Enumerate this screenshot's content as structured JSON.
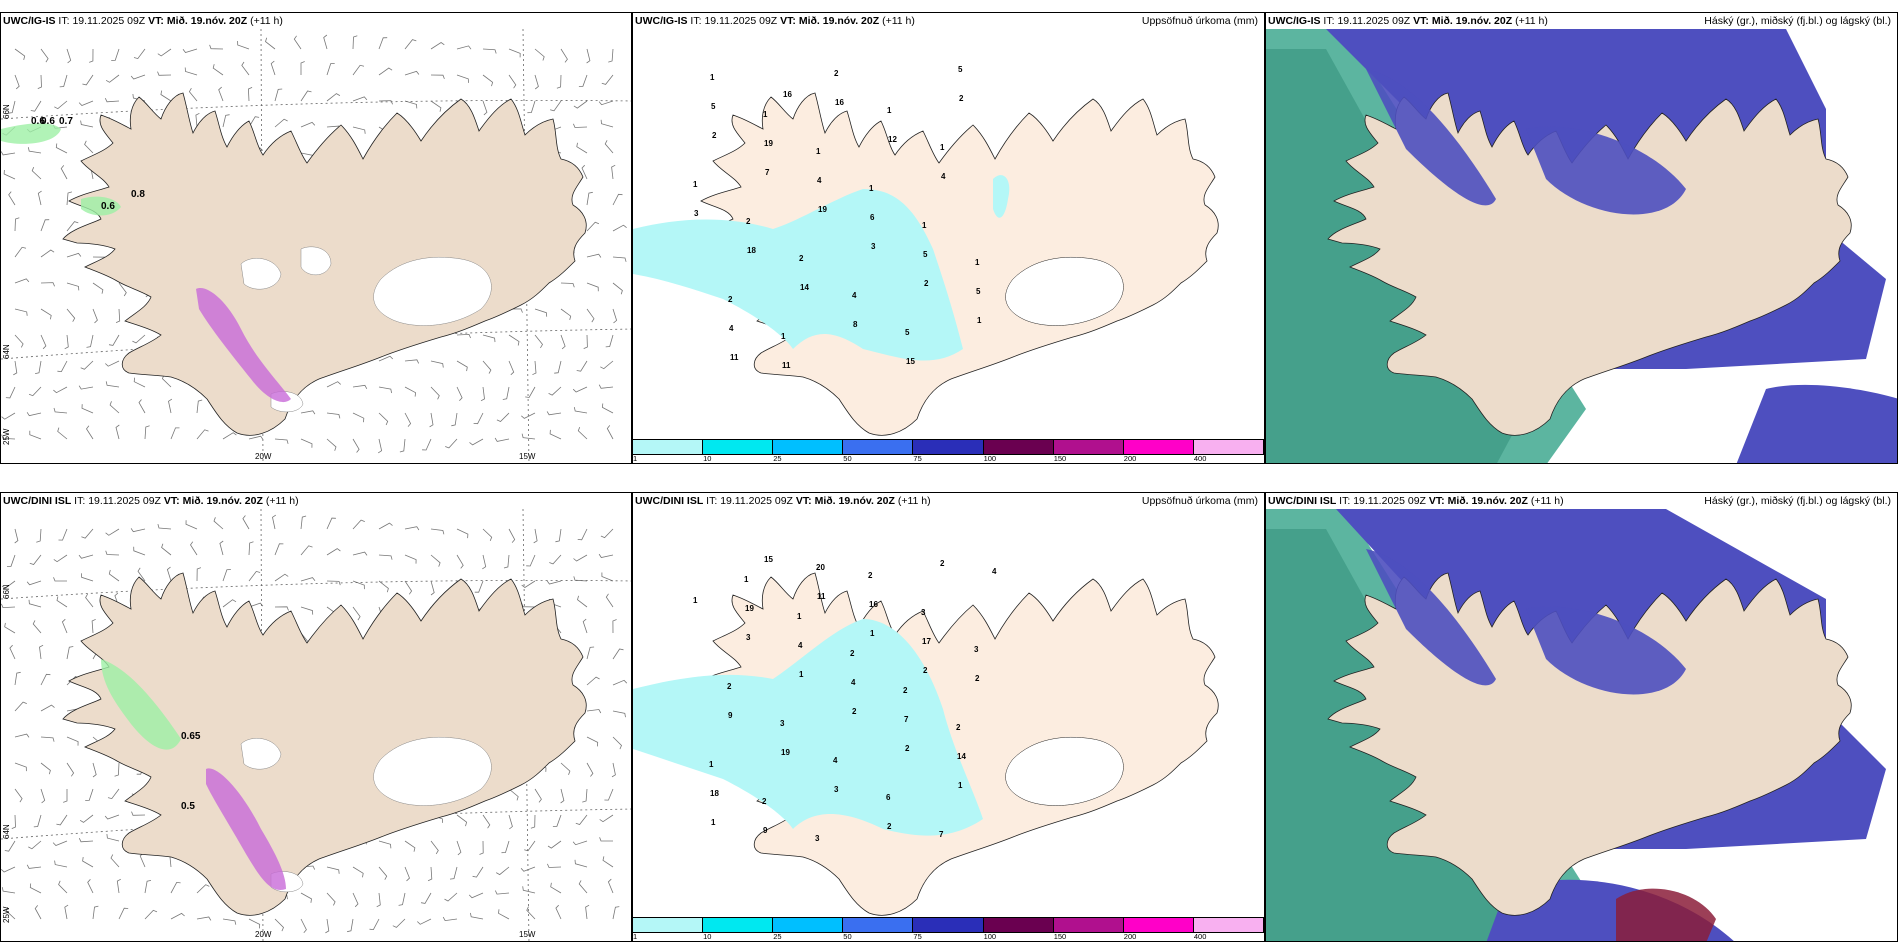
{
  "panels": [
    {
      "id": "p1",
      "model": "UWC/IG-IS",
      "it_label": "IT:",
      "it_value": "19.11.2025 09Z",
      "vt_label": "VT:",
      "vt_value": "Mið. 19.nóv. 20Z",
      "lead": "(+11 h)",
      "right_title": "",
      "kind": "wind"
    },
    {
      "id": "p2",
      "model": "UWC/IG-IS",
      "it_label": "IT:",
      "it_value": "19.11.2025 09Z",
      "vt_label": "VT:",
      "vt_value": "Mið. 19.nóv. 20Z",
      "lead": "(+11 h)",
      "right_title": "Uppsöfnuð úrkoma (mm)",
      "kind": "precip"
    },
    {
      "id": "p3",
      "model": "UWC/IG-IS",
      "it_label": "IT:",
      "it_value": "19.11.2025 09Z",
      "vt_label": "VT:",
      "vt_value": "Mið. 19.nóv. 20Z",
      "lead": "(+11 h)",
      "right_title": "Háský (gr.), miðský (fj.bl.) og lágský (bl.)",
      "kind": "cloud"
    },
    {
      "id": "p4",
      "model": "UWC/DINI ISL",
      "it_label": "IT:",
      "it_value": "19.11.2025 09Z",
      "vt_label": "VT:",
      "vt_value": "Mið. 19.nóv. 20Z",
      "lead": "(+11 h)",
      "right_title": "",
      "kind": "wind"
    },
    {
      "id": "p5",
      "model": "UWC/DINI ISL",
      "it_label": "IT:",
      "it_value": "19.11.2025 09Z",
      "vt_label": "VT:",
      "vt_value": "Mið. 19.nóv. 20Z",
      "lead": "(+11 h)",
      "right_title": "Uppsöfnuð úrkoma (mm)",
      "kind": "precip"
    },
    {
      "id": "p6",
      "model": "UWC/DINI ISL",
      "it_label": "IT:",
      "it_value": "19.11.2025 09Z",
      "vt_label": "VT:",
      "vt_value": "Mið. 19.nóv. 20Z",
      "lead": "(+11 h)",
      "right_title": "Háský (gr.), miðský (fj.bl.) og lágský (bl.)",
      "kind": "cloud"
    }
  ],
  "axes": {
    "lon_labels": [
      "20W",
      "15W"
    ],
    "lat_labels": [
      "66N",
      "64N",
      "25W"
    ]
  },
  "colorbar": {
    "ticks": [
      "1",
      "10",
      "25",
      "50",
      "75",
      "100",
      "150",
      "200",
      "400"
    ],
    "colors": [
      "#b4f7f7",
      "#00e8f0",
      "#00bfff",
      "#3a6ff0",
      "#2a2eb8",
      "#6a0050",
      "#b0108e",
      "#ff00c8",
      "#f8b0f0"
    ]
  },
  "wind_values_top": [
    "0.6",
    "0.7",
    "0.6",
    "0.8",
    "0.6"
  ],
  "wind_values_bottom": [
    "0.65",
    "0.5"
  ],
  "precip_numbers_top": [
    "1",
    "1",
    "1",
    "1",
    "1",
    "1",
    "2",
    "1",
    "2",
    "1",
    "1",
    "1",
    "2",
    "2",
    "4",
    "5",
    "5",
    "5",
    "19",
    "4",
    "6",
    "5",
    "5",
    "4",
    "11",
    "16",
    "12",
    "4",
    "3",
    "18",
    "14",
    "8",
    "15",
    "2",
    "2",
    "7",
    "19",
    "3",
    "2",
    "1",
    "11",
    "16"
  ],
  "precip_numbers_bottom": [
    "1",
    "1",
    "2",
    "2",
    "2",
    "1",
    "2",
    "3",
    "2",
    "3",
    "3",
    "2",
    "3",
    "4",
    "6",
    "7",
    "4",
    "19",
    "4",
    "4",
    "7",
    "14",
    "18",
    "9",
    "20",
    "16",
    "17",
    "2",
    "9",
    "19",
    "3",
    "2",
    "2",
    "1",
    "3",
    "1",
    "2",
    "2",
    "1",
    "1",
    "15",
    "11",
    "1",
    "2"
  ]
}
